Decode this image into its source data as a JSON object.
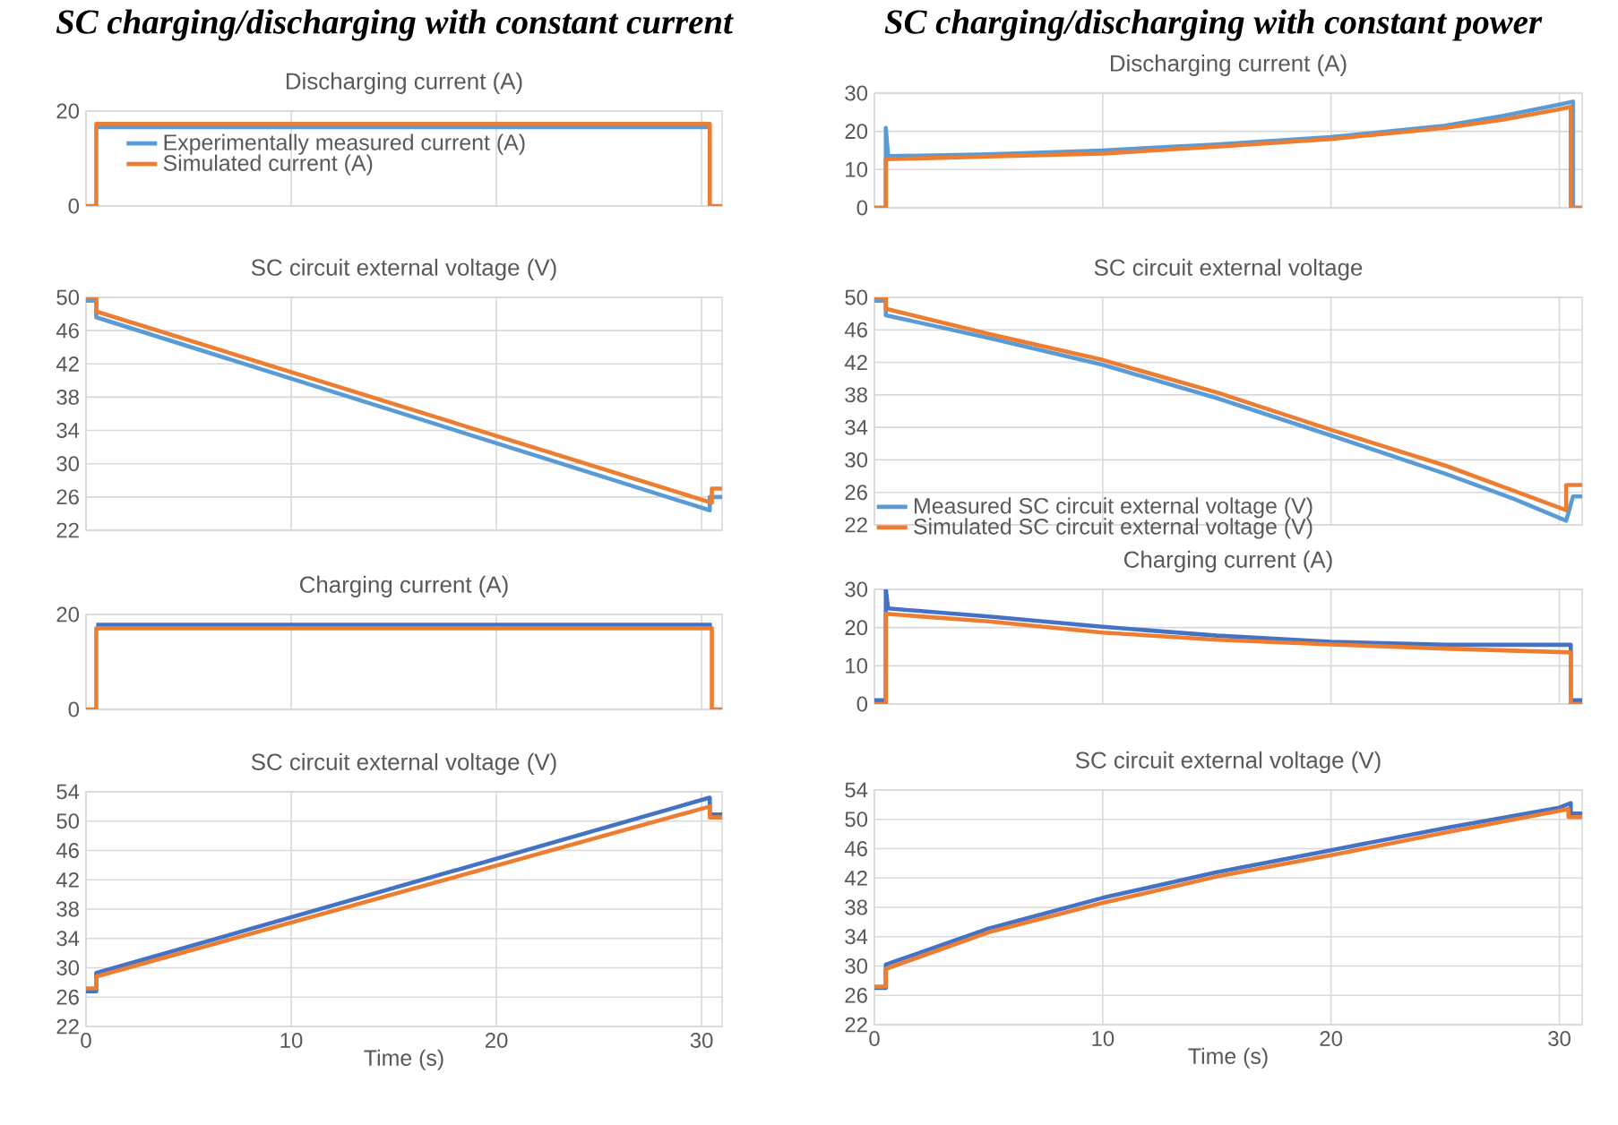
{
  "chart_data": [
    {
      "type": "line",
      "title": "SC charging/discharging with constant current",
      "subtitle": "Discharging current (A)",
      "xlim": [
        0,
        31
      ],
      "xticks": [
        0,
        10,
        20,
        30
      ],
      "ylim": [
        0,
        20
      ],
      "yticks": [
        0,
        20
      ],
      "grid": true,
      "tick_labels": "y",
      "legend": "top left",
      "series": [
        {
          "name": "Experimentally measured current (A)",
          "color": "#5b9bd5",
          "x": [
            0.5,
            30.4
          ],
          "values": [
            16.6,
            16.6
          ]
        },
        {
          "name": "Simulated current (A)",
          "color": "#ed7d31",
          "x": [
            0,
            0.5,
            0.5,
            30.4,
            30.4,
            31
          ],
          "values": [
            0,
            0,
            17.3,
            17.3,
            0,
            0
          ]
        }
      ]
    },
    {
      "type": "line",
      "title": "SC charging/discharging with constant power",
      "subtitle": "Discharging current (A)",
      "xlim": [
        0,
        31
      ],
      "xticks": [
        0,
        10,
        20,
        30
      ],
      "ylim": [
        0,
        30
      ],
      "yticks": [
        0,
        10,
        20,
        30
      ],
      "grid": true,
      "tick_labels": "y",
      "series": [
        {
          "color": "#5b9bd5",
          "x": [
            0,
            0.5,
            0.5,
            0.6,
            5,
            10,
            15,
            20,
            25,
            27.5,
            30,
            30.6,
            30.6,
            31
          ],
          "values": [
            0,
            0,
            20.9,
            13.5,
            14,
            15,
            16.6,
            18.5,
            21.5,
            24,
            27,
            27.8,
            0,
            0
          ]
        },
        {
          "color": "#ed7d31",
          "x": [
            0,
            0.5,
            0.5,
            5,
            10,
            15,
            20,
            25,
            27.5,
            30,
            30.5,
            30.5,
            31
          ],
          "values": [
            0,
            0,
            12.7,
            13.4,
            14.2,
            16,
            18,
            20.9,
            23,
            25.8,
            26.4,
            0,
            0
          ]
        }
      ]
    },
    {
      "type": "line",
      "title": "SC circuit external voltage (V)",
      "xlim": [
        0,
        31
      ],
      "xticks": [
        0,
        10,
        20,
        30
      ],
      "ylim": [
        22,
        50
      ],
      "yticks": [
        22,
        26,
        30,
        34,
        38,
        42,
        46,
        50
      ],
      "grid": true,
      "tick_labels": "y",
      "series": [
        {
          "color": "#5b9bd5",
          "x": [
            0,
            0.5,
            0.5,
            30.4,
            30.4,
            31
          ],
          "values": [
            49.6,
            49.6,
            47.6,
            24.4,
            26,
            26
          ]
        },
        {
          "color": "#ed7d31",
          "x": [
            0,
            0.5,
            0.5,
            30.5,
            30.5,
            31
          ],
          "values": [
            50,
            50,
            48.3,
            25.3,
            27,
            27
          ]
        }
      ]
    },
    {
      "type": "line",
      "title": "SC circuit external voltage",
      "xlim": [
        0,
        31
      ],
      "xticks": [
        0,
        10,
        20,
        30
      ],
      "ylim": [
        22,
        50
      ],
      "yticks": [
        22,
        26,
        30,
        34,
        38,
        42,
        46,
        50
      ],
      "grid": true,
      "tick_labels": "y",
      "legend": "bottom left",
      "series": [
        {
          "name": "Measured SC circuit external voltage (V)",
          "color": "#5b9bd5",
          "x": [
            0,
            0.5,
            0.5,
            5,
            10,
            15,
            20,
            25,
            28,
            30.3,
            30.6,
            31
          ],
          "values": [
            49.6,
            49.6,
            47.8,
            45,
            41.7,
            37.6,
            33,
            28.3,
            25.2,
            22.5,
            25.5,
            25.5
          ]
        },
        {
          "name": "Simulated SC circuit external voltage (V)",
          "color": "#ed7d31",
          "x": [
            0,
            0.5,
            0.5,
            5,
            10,
            15,
            20,
            25,
            28,
            30.3,
            30.3,
            31
          ],
          "values": [
            50,
            50,
            48.6,
            45.5,
            42.3,
            38.3,
            33.7,
            29.3,
            26.2,
            23.8,
            26.9,
            26.9
          ]
        }
      ]
    },
    {
      "type": "line",
      "title": "Charging current (A)",
      "xlim": [
        0,
        31
      ],
      "xticks": [
        0,
        10,
        20,
        30
      ],
      "ylim": [
        0,
        20
      ],
      "yticks": [
        0,
        20
      ],
      "grid": true,
      "tick_labels": "y",
      "series": [
        {
          "color": "#4472c4",
          "x": [
            0.5,
            30.5
          ],
          "values": [
            17.8,
            17.8
          ]
        },
        {
          "color": "#ed7d31",
          "x": [
            0,
            0.5,
            0.5,
            30.5,
            30.5,
            31
          ],
          "values": [
            0,
            0,
            17.1,
            17.1,
            0,
            0
          ]
        }
      ]
    },
    {
      "type": "line",
      "title": "Charging current (A)",
      "xlim": [
        0,
        31
      ],
      "xticks": [
        0,
        10,
        20,
        30
      ],
      "ylim": [
        0,
        30
      ],
      "yticks": [
        0,
        10,
        20,
        30
      ],
      "grid": true,
      "tick_labels": "y",
      "series": [
        {
          "color": "#4472c4",
          "x": [
            0,
            0.5,
            0.5,
            0.6,
            5,
            10,
            15,
            20,
            25,
            30.5,
            30.5,
            31
          ],
          "values": [
            1,
            1,
            30,
            25,
            22.9,
            20.2,
            17.9,
            16.3,
            15.5,
            15.5,
            1,
            1
          ]
        },
        {
          "color": "#ed7d31",
          "x": [
            0,
            0.5,
            0.5,
            5,
            10,
            15,
            20,
            25,
            30.5,
            30.5,
            31
          ],
          "values": [
            0,
            0,
            23.6,
            21.6,
            18.7,
            16.8,
            15.6,
            14.5,
            13.5,
            0,
            0
          ]
        }
      ]
    },
    {
      "type": "line",
      "title": "SC circuit external voltage (V)",
      "xlabel": "Time (s)",
      "xlim": [
        0,
        31
      ],
      "xticks": [
        0,
        10,
        20,
        30
      ],
      "ylim": [
        22,
        54
      ],
      "yticks": [
        22,
        26,
        30,
        34,
        38,
        42,
        46,
        50,
        54
      ],
      "grid": true,
      "series": [
        {
          "color": "#4472c4",
          "x": [
            0,
            0.5,
            0.5,
            30.4,
            30.4,
            31
          ],
          "values": [
            26.8,
            26.8,
            29.3,
            53.2,
            50.9,
            50.9
          ]
        },
        {
          "color": "#ed7d31",
          "x": [
            0,
            0.5,
            0.5,
            30.4,
            30.4,
            31
          ],
          "values": [
            27.2,
            27.2,
            28.8,
            52,
            50.5,
            50.5
          ]
        }
      ]
    },
    {
      "type": "line",
      "title": "SC circuit external voltage (V)",
      "xlabel": "Time (s)",
      "xlim": [
        0,
        31
      ],
      "xticks": [
        0,
        10,
        20,
        30
      ],
      "ylim": [
        22,
        54
      ],
      "yticks": [
        22,
        26,
        30,
        34,
        38,
        42,
        46,
        50,
        54
      ],
      "grid": true,
      "series": [
        {
          "color": "#4472c4",
          "x": [
            0,
            0.5,
            0.5,
            5,
            10,
            15,
            20,
            25,
            30,
            30.5,
            30.5,
            31
          ],
          "values": [
            27,
            27,
            30.2,
            35.1,
            39.3,
            42.8,
            45.8,
            48.8,
            51.6,
            52.2,
            50.8,
            50.8
          ]
        },
        {
          "color": "#ed7d31",
          "x": [
            0,
            0.5,
            0.5,
            5,
            10,
            15,
            20,
            25,
            30.4,
            30.4,
            31
          ],
          "values": [
            27.2,
            27.2,
            29.6,
            34.6,
            38.6,
            42.2,
            45.1,
            48.2,
            51.4,
            50.3,
            50.3
          ]
        }
      ]
    }
  ]
}
